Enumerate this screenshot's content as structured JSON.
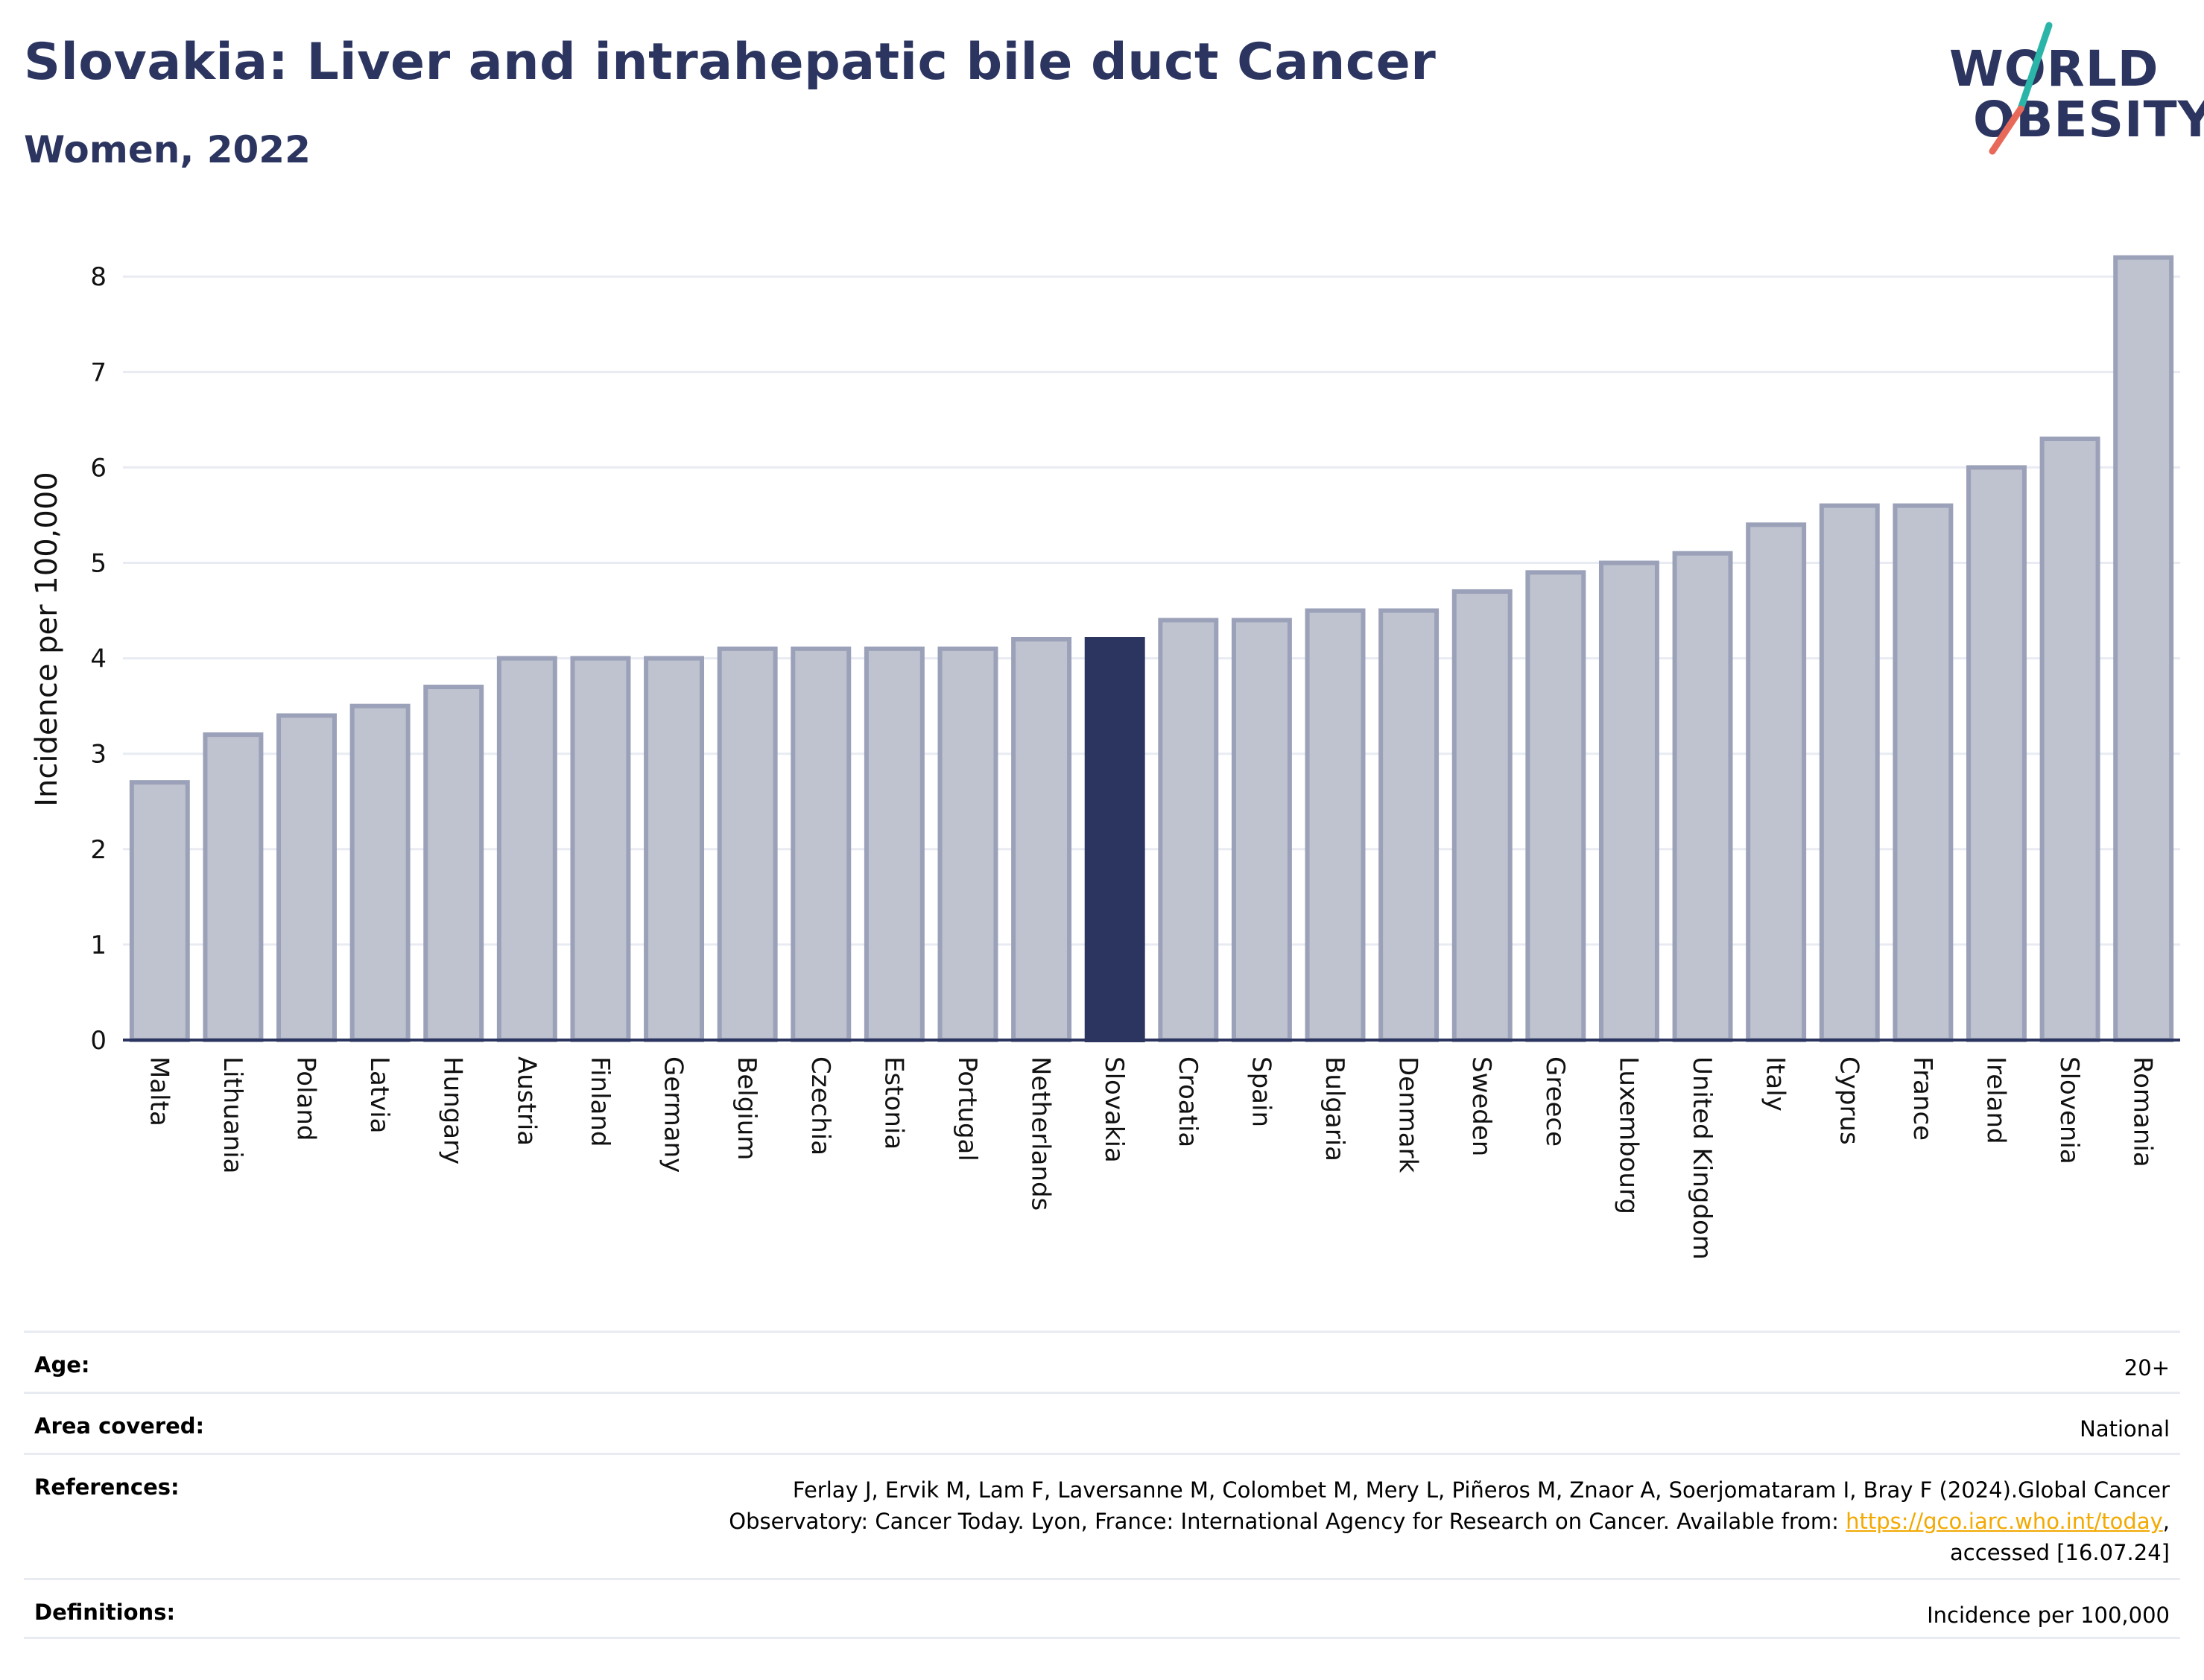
{
  "header": {
    "title": "Slovakia: Liver and intrahepatic bile duct Cancer",
    "subtitle": "Women, 2022"
  },
  "logo": {
    "line1": "WORLD",
    "line2": "OBESITY",
    "text_color": "#2b3560",
    "slash_colors": [
      "#2bb5a8",
      "#e8695a"
    ]
  },
  "chart_data": {
    "type": "bar",
    "categories": [
      "Malta",
      "Lithuania",
      "Poland",
      "Latvia",
      "Hungary",
      "Austria",
      "Finland",
      "Germany",
      "Belgium",
      "Czechia",
      "Estonia",
      "Portugal",
      "Netherlands",
      "Slovakia",
      "Croatia",
      "Spain",
      "Bulgaria",
      "Denmark",
      "Sweden",
      "Greece",
      "Luxembourg",
      "United Kingdom",
      "Italy",
      "Cyprus",
      "France",
      "Ireland",
      "Slovenia",
      "Romania"
    ],
    "values": [
      2.7,
      3.2,
      3.4,
      3.5,
      3.7,
      4.0,
      4.0,
      4.0,
      4.1,
      4.1,
      4.1,
      4.1,
      4.2,
      4.2,
      4.4,
      4.4,
      4.5,
      4.5,
      4.7,
      4.9,
      5.0,
      5.1,
      5.4,
      5.6,
      5.6,
      6.0,
      6.3,
      8.2
    ],
    "highlight": "Slovakia",
    "ylabel": "Incidence per 100,000",
    "xlabel": "",
    "ylim": [
      0,
      8.4
    ],
    "yticks": [
      0,
      1,
      2,
      3,
      4,
      5,
      6,
      7,
      8
    ],
    "grid": true,
    "colors": {
      "bar": "#bfc3cf",
      "bar_edge": "#9ba1b8",
      "highlight": "#2b3560",
      "grid": "#e8ebf2",
      "axis": "#2b3560"
    }
  },
  "meta": {
    "age_label": "Age:",
    "age_value": "20+",
    "area_label": "Area covered:",
    "area_value": "National",
    "refs_label": "References:",
    "refs_line1": "Ferlay J, Ervik M, Lam F, Laversanne M, Colombet M, Mery L, Piñeros M, Znaor A, Soerjomataram I, Bray F (2024).Global Cancer",
    "refs_line2_pre": "Observatory: Cancer Today. Lyon, France: International Agency for Research on Cancer. Available from: ",
    "refs_link": "https://gco.iarc.who.int/today",
    "refs_line2_post": ",",
    "refs_line3": "accessed [16.07.24]",
    "defs_label": "Definitions:",
    "defs_value": "Incidence per 100,000"
  }
}
